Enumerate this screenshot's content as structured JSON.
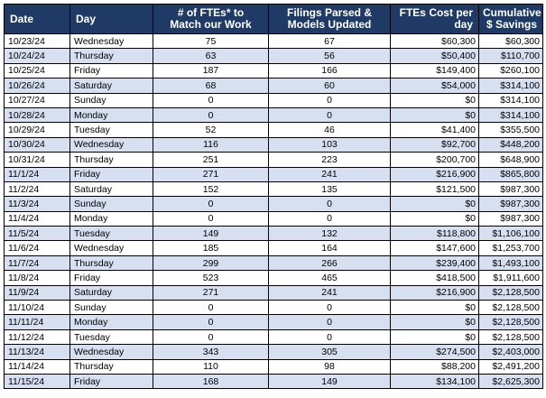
{
  "colors": {
    "header_bg": "#1f3a64",
    "header_text": "#ffffff",
    "stripe": "#d6e0f0",
    "grid": "#000000"
  },
  "headers": {
    "date": "Date",
    "day": "Day",
    "ftes_line1": "# of FTEs* to",
    "ftes_line2": "Match our Work",
    "filings_line1": "Filings Parsed &",
    "filings_line2": "Models Updated",
    "cost_line1": "FTEs Cost per",
    "cost_line2": "day",
    "cum_line1": "Cumulative",
    "cum_line2": "$ Savings"
  },
  "rows": [
    {
      "date": "10/23/24",
      "day": "Wednesday",
      "ftes": "75",
      "filings": "67",
      "cost": "$60,300",
      "cumulative": "$60,300"
    },
    {
      "date": "10/24/24",
      "day": "Thursday",
      "ftes": "63",
      "filings": "56",
      "cost": "$50,400",
      "cumulative": "$110,700"
    },
    {
      "date": "10/25/24",
      "day": "Friday",
      "ftes": "187",
      "filings": "166",
      "cost": "$149,400",
      "cumulative": "$260,100"
    },
    {
      "date": "10/26/24",
      "day": "Saturday",
      "ftes": "68",
      "filings": "60",
      "cost": "$54,000",
      "cumulative": "$314,100"
    },
    {
      "date": "10/27/24",
      "day": "Sunday",
      "ftes": "0",
      "filings": "0",
      "cost": "$0",
      "cumulative": "$314,100"
    },
    {
      "date": "10/28/24",
      "day": "Monday",
      "ftes": "0",
      "filings": "0",
      "cost": "$0",
      "cumulative": "$314,100"
    },
    {
      "date": "10/29/24",
      "day": "Tuesday",
      "ftes": "52",
      "filings": "46",
      "cost": "$41,400",
      "cumulative": "$355,500"
    },
    {
      "date": "10/30/24",
      "day": "Wednesday",
      "ftes": "116",
      "filings": "103",
      "cost": "$92,700",
      "cumulative": "$448,200"
    },
    {
      "date": "10/31/24",
      "day": "Thursday",
      "ftes": "251",
      "filings": "223",
      "cost": "$200,700",
      "cumulative": "$648,900"
    },
    {
      "date": "11/1/24",
      "day": "Friday",
      "ftes": "271",
      "filings": "241",
      "cost": "$216,900",
      "cumulative": "$865,800"
    },
    {
      "date": "11/2/24",
      "day": "Saturday",
      "ftes": "152",
      "filings": "135",
      "cost": "$121,500",
      "cumulative": "$987,300"
    },
    {
      "date": "11/3/24",
      "day": "Sunday",
      "ftes": "0",
      "filings": "0",
      "cost": "$0",
      "cumulative": "$987,300"
    },
    {
      "date": "11/4/24",
      "day": "Monday",
      "ftes": "0",
      "filings": "0",
      "cost": "$0",
      "cumulative": "$987,300"
    },
    {
      "date": "11/5/24",
      "day": "Tuesday",
      "ftes": "149",
      "filings": "132",
      "cost": "$118,800",
      "cumulative": "$1,106,100"
    },
    {
      "date": "11/6/24",
      "day": "Wednesday",
      "ftes": "185",
      "filings": "164",
      "cost": "$147,600",
      "cumulative": "$1,253,700"
    },
    {
      "date": "11/7/24",
      "day": "Thursday",
      "ftes": "299",
      "filings": "266",
      "cost": "$239,400",
      "cumulative": "$1,493,100"
    },
    {
      "date": "11/8/24",
      "day": "Friday",
      "ftes": "523",
      "filings": "465",
      "cost": "$418,500",
      "cumulative": "$1,911,600"
    },
    {
      "date": "11/9/24",
      "day": "Saturday",
      "ftes": "271",
      "filings": "241",
      "cost": "$216,900",
      "cumulative": "$2,128,500"
    },
    {
      "date": "11/10/24",
      "day": "Sunday",
      "ftes": "0",
      "filings": "0",
      "cost": "$0",
      "cumulative": "$2,128,500"
    },
    {
      "date": "11/11/24",
      "day": "Monday",
      "ftes": "0",
      "filings": "0",
      "cost": "$0",
      "cumulative": "$2,128,500"
    },
    {
      "date": "11/12/24",
      "day": "Tuesday",
      "ftes": "0",
      "filings": "0",
      "cost": "$0",
      "cumulative": "$2,128,500"
    },
    {
      "date": "11/13/24",
      "day": "Wednesday",
      "ftes": "343",
      "filings": "305",
      "cost": "$274,500",
      "cumulative": "$2,403,000"
    },
    {
      "date": "11/14/24",
      "day": "Thursday",
      "ftes": "110",
      "filings": "98",
      "cost": "$88,200",
      "cumulative": "$2,491,200"
    },
    {
      "date": "11/15/24",
      "day": "Friday",
      "ftes": "168",
      "filings": "149",
      "cost": "$134,100",
      "cumulative": "$2,625,300"
    }
  ]
}
